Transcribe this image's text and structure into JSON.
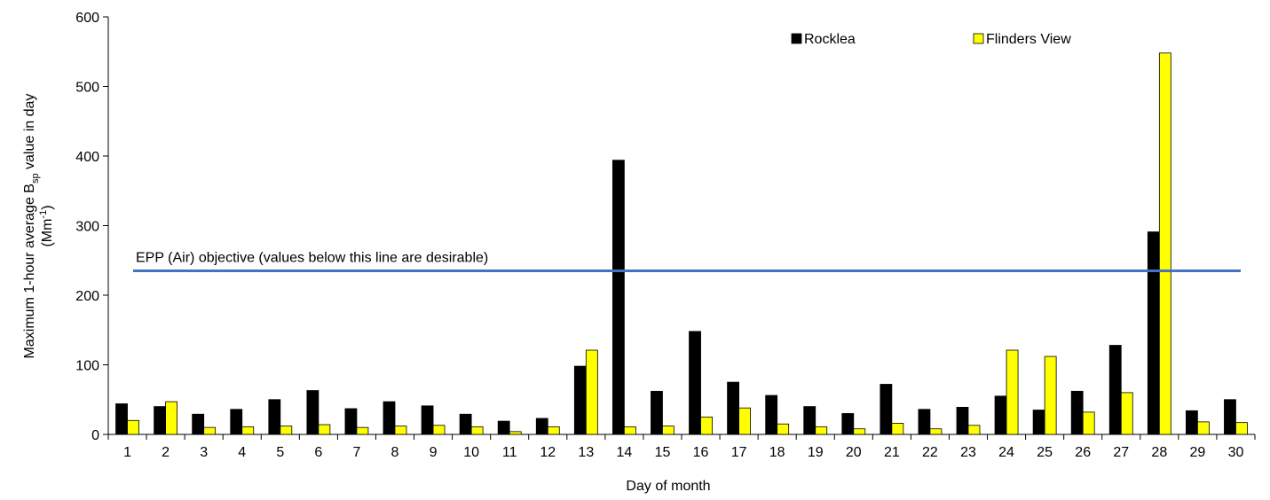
{
  "chart_data": {
    "type": "bar",
    "xlabel": "Day of month",
    "ylabel_main": "Maximum 1-hour average B",
    "ylabel_sub": "sp",
    "ylabel_tail": " value in day",
    "ylabel_unit_main": "(Mm",
    "ylabel_unit_sup": "-1",
    "ylabel_unit_tail": ")",
    "ylim": [
      0,
      600
    ],
    "yticks": [
      0,
      100,
      200,
      300,
      400,
      500,
      600
    ],
    "categories": [
      "1",
      "2",
      "3",
      "4",
      "5",
      "6",
      "7",
      "8",
      "9",
      "10",
      "11",
      "12",
      "13",
      "14",
      "15",
      "16",
      "17",
      "18",
      "19",
      "20",
      "21",
      "22",
      "23",
      "24",
      "25",
      "26",
      "27",
      "28",
      "29",
      "30"
    ],
    "series": [
      {
        "name": "Rocklea",
        "color": "#000000",
        "values": [
          44,
          40,
          29,
          36,
          50,
          63,
          37,
          47,
          41,
          29,
          19,
          23,
          98,
          394,
          62,
          148,
          75,
          56,
          40,
          30,
          72,
          36,
          39,
          55,
          35,
          62,
          128,
          291,
          34,
          50
        ]
      },
      {
        "name": "Flinders View",
        "color": "#ffff00",
        "values": [
          20,
          47,
          10,
          11,
          12,
          14,
          10,
          12,
          13,
          11,
          4,
          11,
          121,
          11,
          12,
          25,
          38,
          15,
          11,
          8,
          16,
          8,
          13,
          121,
          112,
          32,
          60,
          548,
          18,
          17
        ]
      }
    ],
    "reference_line": {
      "value": 235,
      "label": "EPP (Air) objective (values below this line are desirable)",
      "color": "#4472c4"
    },
    "legend_position": "top-right",
    "grid": false
  }
}
